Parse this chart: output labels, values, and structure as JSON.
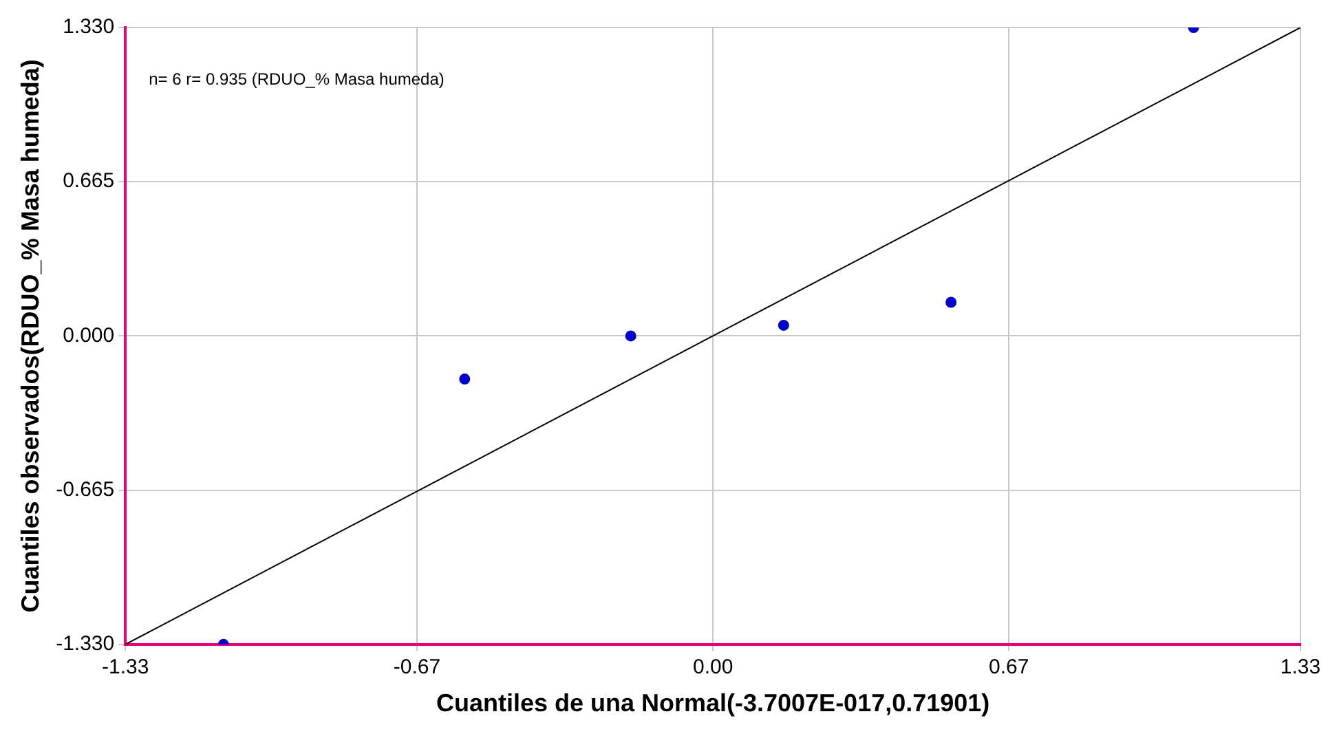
{
  "chart_data": {
    "type": "scatter",
    "xlabel": "Cuantiles de una Normal(-3.7007E-017,0.71901)",
    "ylabel": "Cuantiles observados(RDUO_% Masa humeda)",
    "annotations": [
      "n= 6 r= 0.935 (RDUO_% Masa humeda)"
    ],
    "series": [
      {
        "color": "#0000cc",
        "marker": "circle",
        "x": [
          -1.108,
          -0.562,
          -0.186,
          0.16,
          0.539,
          1.088
        ],
        "values": [
          -1.33,
          -0.186,
          0.0,
          0.046,
          0.145,
          1.33
        ]
      },
      {
        "type": "line",
        "marker": "none",
        "color": "#000000",
        "x": [
          -1.33,
          1.33
        ],
        "values": [
          -1.33,
          1.33
        ]
      }
    ],
    "xlim": [
      -1.33,
      1.33
    ],
    "ylim": [
      -1.33,
      1.33
    ],
    "xticks": [
      -1.33,
      -0.67,
      {
        "value": 0,
        "label": "0.00"
      },
      0.67,
      1.33
    ],
    "yticks": [
      {
        "value": -1.33,
        "label": "-1.330"
      },
      {
        "value": -0.665,
        "label": "-0.665"
      },
      {
        "value": 0,
        "label": "0.000"
      },
      {
        "value": 0.665,
        "label": "0.665"
      },
      {
        "value": 1.33,
        "label": "1.330"
      }
    ],
    "grid": true,
    "legend": false
  }
}
